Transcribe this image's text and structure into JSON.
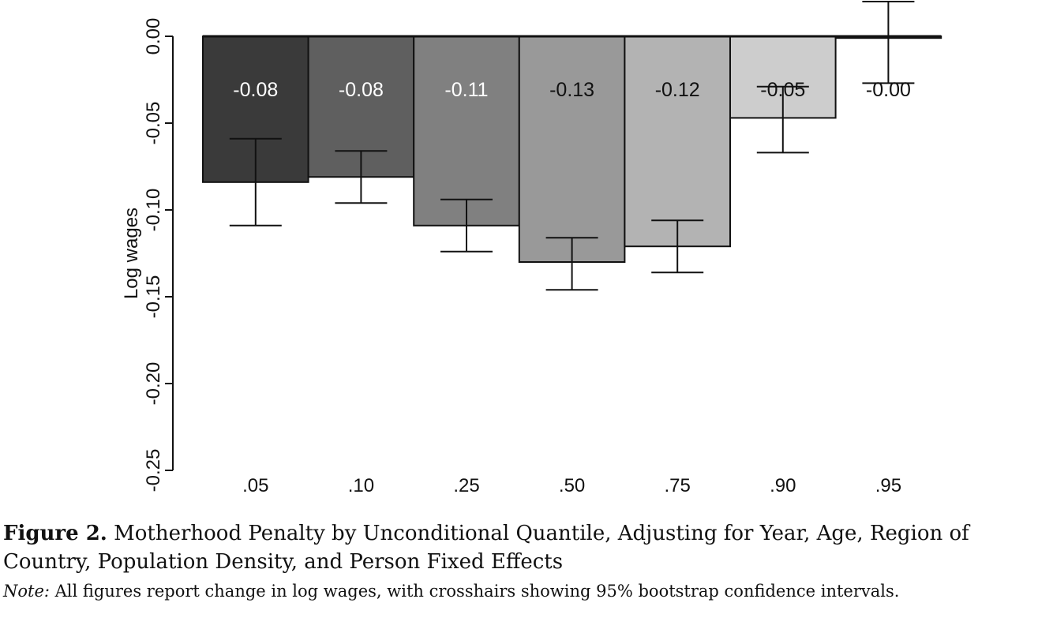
{
  "chart_data": {
    "type": "bar",
    "title": "",
    "xlabel": "",
    "ylabel": "Log wages",
    "ylim": [
      -0.25,
      0.0
    ],
    "yticks": [
      0.0,
      -0.05,
      -0.1,
      -0.15,
      -0.2,
      -0.25
    ],
    "ytick_labels": [
      "0.00",
      "-0.05",
      "-0.10",
      "-0.15",
      "-0.20",
      "-0.25"
    ],
    "categories": [
      ".05",
      ".10",
      ".25",
      ".50",
      ".75",
      ".90",
      ".95"
    ],
    "values": [
      -0.084,
      -0.081,
      -0.109,
      -0.13,
      -0.121,
      -0.047,
      -0.001
    ],
    "value_labels": [
      "-0.08",
      "-0.08",
      "-0.11",
      "-0.13",
      "-0.12",
      "-0.05",
      "-0.00"
    ],
    "ci_low": [
      -0.109,
      -0.096,
      -0.124,
      -0.146,
      -0.136,
      -0.067,
      -0.027
    ],
    "ci_high": [
      -0.059,
      -0.066,
      -0.094,
      -0.116,
      -0.106,
      -0.029,
      0.02
    ],
    "bar_colors": [
      "#3a3a3a",
      "#5f5f5f",
      "#808080",
      "#999999",
      "#b3b3b3",
      "#cdcdcd",
      "#ffffff"
    ],
    "label_colors": [
      "#ffffff",
      "#ffffff",
      "#ffffff",
      "#111111",
      "#111111",
      "#111111",
      "#111111"
    ],
    "grid": false,
    "legend": "none"
  },
  "caption": {
    "label": "Figure 2.",
    "text": " Motherhood Penalty by Unconditional Quantile, Adjusting for Year, Age, Region of Country, Population Density, and Person Fixed Effects"
  },
  "note": {
    "label": "Note:",
    "text": " All figures report change in log wages, with crosshairs showing 95% bootstrap confidence intervals."
  }
}
